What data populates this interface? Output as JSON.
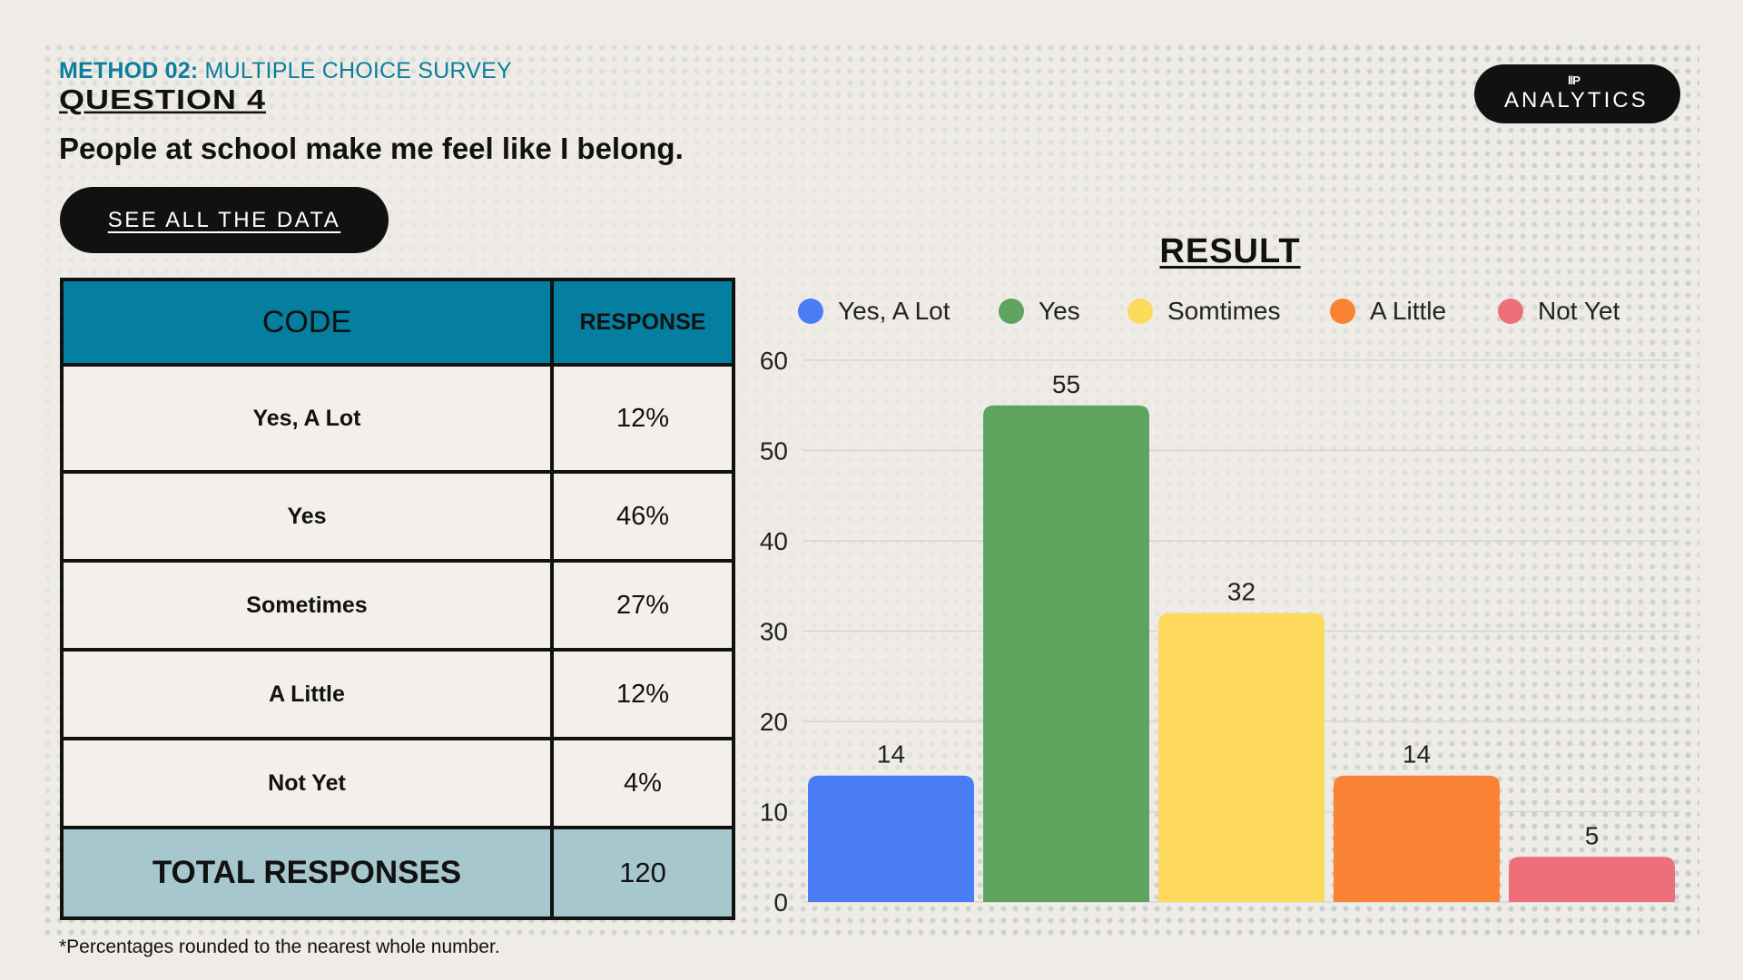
{
  "header": {
    "method_bold": "METHOD 02:",
    "method_rest": " MULTIPLE CHOICE SURVEY",
    "question": "QUESTION 4",
    "statement": "People at school make me feel like I belong.",
    "see_all_label": "SEE ALL THE DATA"
  },
  "brand": {
    "mark": "llP",
    "text": "ANALYTICS"
  },
  "table": {
    "headers": [
      "CODE",
      "RESPONSE"
    ],
    "rows": [
      {
        "code": "Yes, A Lot",
        "response": "12%"
      },
      {
        "code": "Yes",
        "response": "46%"
      },
      {
        "code": "Sometimes",
        "response": "27%"
      },
      {
        "code": "A Little",
        "response": "12%"
      },
      {
        "code": "Not Yet",
        "response": "4%"
      }
    ],
    "total": {
      "label": "TOTAL RESPONSES",
      "value": "120"
    }
  },
  "footnote": "*Percentages rounded to the nearest whole number.",
  "chart_data": {
    "type": "bar",
    "title": "RESULT",
    "categories": [
      "Yes, A Lot",
      "Yes",
      "Somtimes",
      "A Little",
      "Not Yet"
    ],
    "values": [
      14,
      55,
      32,
      14,
      5
    ],
    "colors": [
      "#4a7cf5",
      "#5ea45f",
      "#fdd95c",
      "#fa8234",
      "#ed6f7a"
    ],
    "ylim": [
      0,
      60
    ],
    "yticks": [
      0,
      10,
      20,
      30,
      40,
      50,
      60
    ],
    "legend_position": "top",
    "grid": true,
    "data_labels": true
  }
}
